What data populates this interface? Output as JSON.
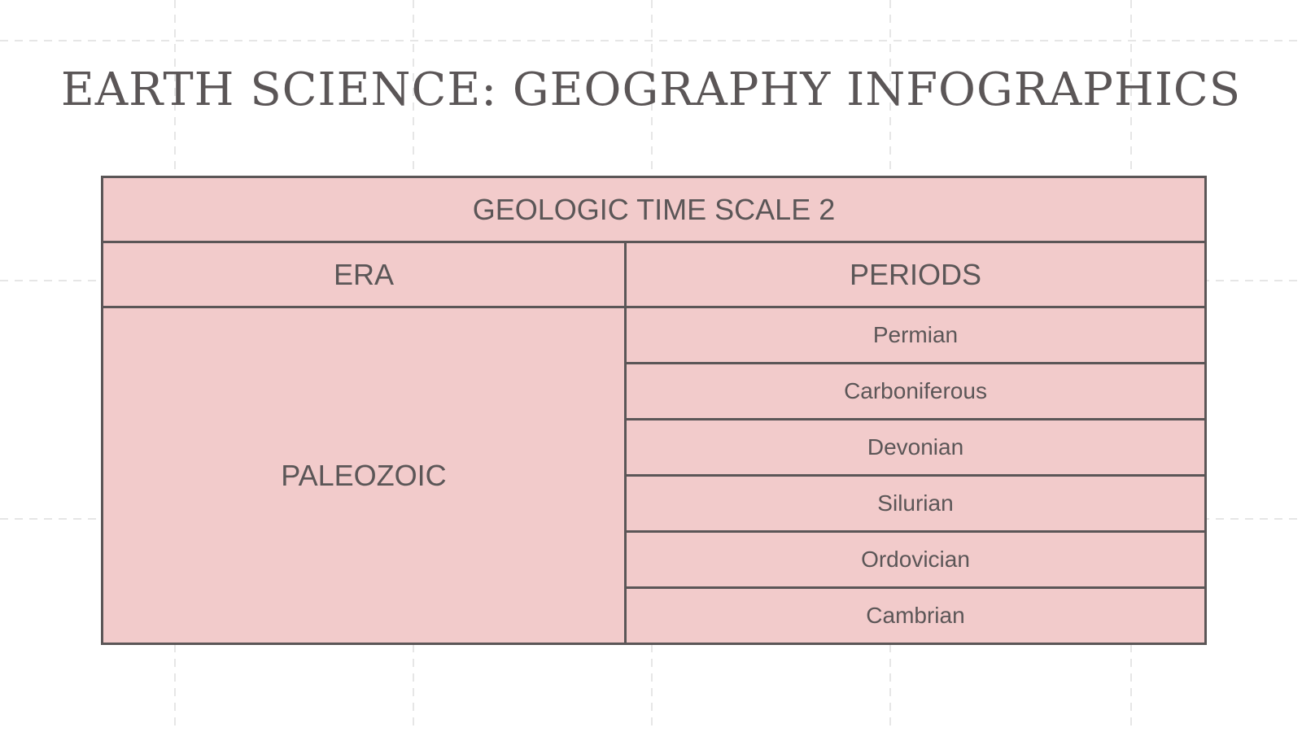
{
  "slide": {
    "title": "EARTH SCIENCE: GEOGRAPHY INFOGRAPHICS"
  },
  "table": {
    "title": "GEOLOGIC TIME SCALE 2",
    "headers": {
      "era": "ERA",
      "periods": "PERIODS"
    },
    "era": "PALEOZOIC",
    "periods": [
      "Permian",
      "Carboniferous",
      "Devonian",
      "Silurian",
      "Ordovician",
      "Cambrian"
    ]
  },
  "colors": {
    "cell_fill": "#f2cbcb",
    "border": "#5b5657",
    "text": "#5b5657",
    "background": "#ffffff",
    "grid": "#e6e6e6"
  }
}
